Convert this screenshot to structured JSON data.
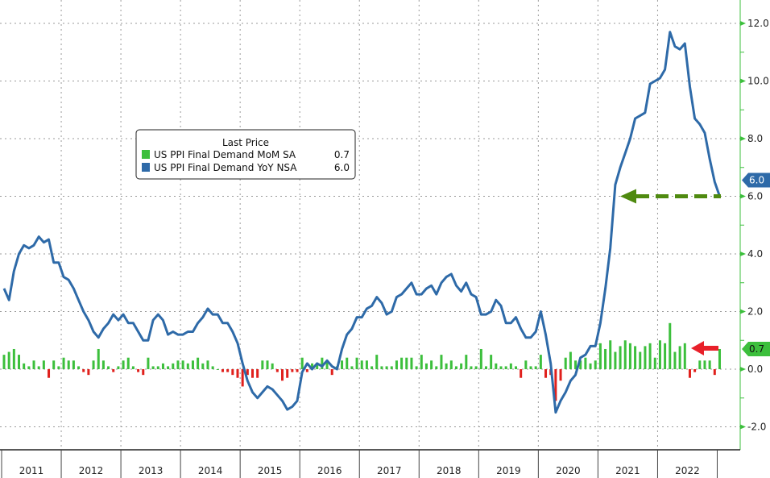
{
  "chart_data": {
    "type": "line+bar",
    "legend": {
      "title": "Last Price",
      "placement": "upper-left",
      "entries": [
        {
          "label": "US PPI Final Demand MoM SA",
          "last": "0.7",
          "color": "#3cbf3c"
        },
        {
          "label": "US PPI Final Demand YoY NSA",
          "last": "6.0",
          "color": "#2e6aa8"
        }
      ]
    },
    "x_start": "2011-01",
    "x_end": "2023-01",
    "x_tick_labels": [
      "2011",
      "2012",
      "2013",
      "2014",
      "2015",
      "2016",
      "2017",
      "2018",
      "2019",
      "2020",
      "2021",
      "2022"
    ],
    "y_axis": {
      "side": "right",
      "ylim": [
        -2.8,
        12.8
      ],
      "ticks": [
        "12.0",
        "10.0",
        "8.0",
        "6.0",
        "4.0",
        "2.0",
        "0.0",
        "-2.0"
      ],
      "tick_values": [
        12,
        10,
        8,
        6,
        4,
        2,
        0,
        -2
      ],
      "grid": "dotted horizontal and vertical"
    },
    "series": [
      {
        "name": "US PPI Final Demand YoY NSA",
        "type": "line",
        "color": "#2e6aa8",
        "last_label": "6.0",
        "frequency": "monthly",
        "values": [
          2.8,
          2.4,
          3.4,
          4.0,
          4.3,
          4.2,
          4.3,
          4.6,
          4.4,
          4.5,
          3.7,
          3.7,
          3.2,
          3.1,
          2.8,
          2.4,
          2.0,
          1.7,
          1.3,
          1.1,
          1.4,
          1.6,
          1.9,
          1.7,
          1.9,
          1.6,
          1.6,
          1.3,
          1.0,
          1.0,
          1.7,
          1.9,
          1.7,
          1.2,
          1.3,
          1.2,
          1.2,
          1.3,
          1.3,
          1.6,
          1.8,
          2.1,
          1.9,
          1.9,
          1.6,
          1.6,
          1.3,
          0.9,
          0.2,
          -0.4,
          -0.8,
          -1.0,
          -0.8,
          -0.6,
          -0.7,
          -0.9,
          -1.1,
          -1.4,
          -1.3,
          -1.1,
          -0.1,
          0.2,
          0.0,
          0.2,
          0.1,
          0.3,
          0.1,
          0.0,
          0.7,
          1.2,
          1.4,
          1.8,
          1.8,
          2.1,
          2.2,
          2.5,
          2.3,
          1.9,
          2.0,
          2.5,
          2.6,
          2.8,
          3.0,
          2.6,
          2.6,
          2.8,
          2.9,
          2.6,
          3.0,
          3.2,
          3.3,
          2.9,
          2.7,
          3.0,
          2.6,
          2.5,
          1.9,
          1.9,
          2.0,
          2.4,
          2.2,
          1.6,
          1.6,
          1.8,
          1.4,
          1.1,
          1.1,
          1.3,
          2.0,
          1.2,
          0.2,
          -1.5,
          -1.1,
          -0.8,
          -0.4,
          -0.2,
          0.4,
          0.5,
          0.8,
          0.8,
          1.6,
          2.8,
          4.2,
          6.4,
          7.0,
          7.5,
          8.0,
          8.7,
          8.8,
          8.9,
          9.9,
          10.0,
          10.1,
          10.4,
          11.7,
          11.2,
          11.1,
          11.3,
          9.8,
          8.7,
          8.5,
          8.2,
          7.3,
          6.5,
          6.0
        ]
      },
      {
        "name": "US PPI Final Demand MoM SA",
        "type": "bar",
        "color_pos": "#3cbf3c",
        "color_neg": "#e0201c",
        "last_label": "0.7",
        "frequency": "monthly",
        "values": [
          0.5,
          0.6,
          0.7,
          0.5,
          0.2,
          0.1,
          0.3,
          0.1,
          0.3,
          -0.3,
          0.3,
          0.1,
          0.4,
          0.3,
          0.3,
          0.1,
          -0.1,
          -0.2,
          0.3,
          0.7,
          0.3,
          0.1,
          -0.1,
          0.1,
          0.3,
          0.4,
          0.1,
          -0.1,
          -0.2,
          0.4,
          0.1,
          0.1,
          0.2,
          0.1,
          0.2,
          0.3,
          0.3,
          0.2,
          0.3,
          0.4,
          0.2,
          0.3,
          0.1,
          0.0,
          -0.1,
          -0.1,
          -0.2,
          -0.3,
          -0.6,
          -0.2,
          -0.3,
          -0.3,
          0.3,
          0.3,
          0.2,
          -0.1,
          -0.4,
          -0.3,
          -0.1,
          -0.1,
          0.4,
          -0.1,
          0.2,
          0.2,
          0.4,
          0.3,
          -0.2,
          0.1,
          0.3,
          0.4,
          0.1,
          0.4,
          0.3,
          0.3,
          0.1,
          0.5,
          0.1,
          0.1,
          0.1,
          0.3,
          0.4,
          0.4,
          0.4,
          0.1,
          0.5,
          0.2,
          0.3,
          0.1,
          0.5,
          0.2,
          0.3,
          0.1,
          0.2,
          0.5,
          0.1,
          0.1,
          0.7,
          0.1,
          0.5,
          0.2,
          0.1,
          0.1,
          0.2,
          0.1,
          -0.3,
          0.3,
          0.1,
          0.1,
          0.5,
          -0.3,
          -0.2,
          -1.1,
          -0.4,
          0.4,
          0.6,
          0.3,
          0.3,
          0.4,
          0.2,
          0.3,
          0.9,
          0.7,
          1.0,
          0.6,
          0.8,
          1.0,
          0.9,
          0.8,
          0.6,
          0.8,
          0.9,
          0.4,
          1.0,
          0.9,
          1.6,
          0.6,
          0.8,
          0.9,
          -0.3,
          -0.1,
          0.3,
          0.3,
          0.3,
          -0.2,
          0.7
        ]
      }
    ],
    "annotations": [
      {
        "type": "dashed-arrow",
        "color": "#4f8a10",
        "at_value": 6.0,
        "points_to": "left"
      },
      {
        "type": "arrow",
        "color": "#e8202a",
        "near_value": 0.7,
        "points_to": "left"
      }
    ]
  }
}
